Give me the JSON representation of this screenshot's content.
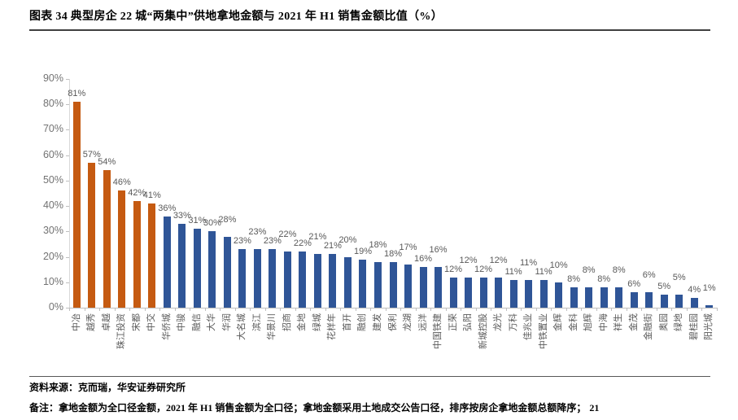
{
  "figure": {
    "title": "图表 34  典型房企 22 城“两集中”供地拿地金额与 2021 年 H1 销售金额比值（%）"
  },
  "chart_data": {
    "type": "bar",
    "title": "典型房企22城“两集中”供地拿地金额与2021年H1销售金额比值",
    "unit": "%",
    "categories": [
      "中冶",
      "越秀",
      "卓越",
      "珠江投资",
      "宋都",
      "中交",
      "华侨城",
      "中骏",
      "融信",
      "大华",
      "华润",
      "大名城",
      "滨江",
      "华景川",
      "招商",
      "金地",
      "绿城",
      "花样年",
      "首开",
      "融创",
      "建发",
      "保利",
      "龙湖",
      "远洋",
      "中国铁建",
      "正荣",
      "弘阳",
      "新城控股",
      "龙光",
      "万科",
      "佳兆业",
      "中铁置业",
      "金辉",
      "金科",
      "旭辉",
      "中海",
      "祥生",
      "金茂",
      "金融街",
      "奥园",
      "绿地",
      "碧桂园",
      "阳光城"
    ],
    "values": [
      81,
      57,
      54,
      46,
      42,
      41,
      36,
      33,
      31,
      30,
      28,
      23,
      23,
      23,
      22,
      22,
      21,
      21,
      20,
      19,
      18,
      18,
      17,
      16,
      16,
      12,
      12,
      12,
      12,
      11,
      11,
      11,
      10,
      8,
      8,
      8,
      8,
      6,
      6,
      5,
      5,
      4,
      1
    ],
    "value_label_suffix": "%",
    "ylim": [
      0,
      90
    ],
    "ytick_step": 10,
    "yticks": [
      "0%",
      "10%",
      "20%",
      "30%",
      "40%",
      "50%",
      "60%",
      "70%",
      "80%",
      "90%"
    ],
    "grid": false,
    "legend": "none",
    "highlight_count": 6,
    "colors": {
      "highlight": "#C55A11",
      "default": "#2F5597",
      "value_label": "#595959",
      "axis": "#BFBFBF",
      "tick_label": "#737373"
    }
  },
  "footer": {
    "source": "资料来源：克而瑞，华安证券研究所",
    "note": "备注：拿地金额为全口径金额，2021 年 H1 销售金额为全口径；拿地金额采用土地成交公告口径，排序按房企拿地金额总额降序；",
    "page_number": "21"
  }
}
